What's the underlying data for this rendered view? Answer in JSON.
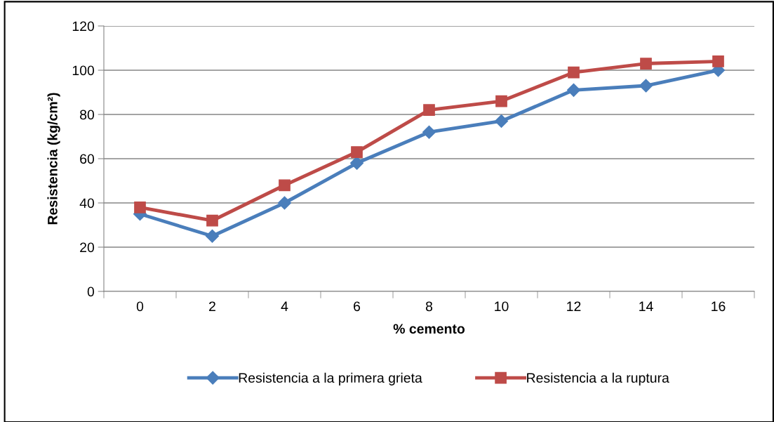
{
  "chart_data": {
    "type": "line",
    "xlabel": "% cemento",
    "ylabel": "Resistencia (kg/cm²)",
    "categories": [
      "0",
      "2",
      "4",
      "6",
      "8",
      "10",
      "12",
      "14",
      "16"
    ],
    "series": [
      {
        "name": "Resistencia a la primera grieta",
        "color": "#4a7ebb",
        "marker": "diamond",
        "values": [
          35,
          25,
          40,
          58,
          72,
          77,
          91,
          93,
          100
        ]
      },
      {
        "name": "Resistencia a la ruptura",
        "color": "#be4b48",
        "marker": "square",
        "values": [
          38,
          32,
          48,
          63,
          82,
          86,
          99,
          103,
          104
        ]
      }
    ],
    "ylim": [
      0,
      120
    ],
    "yticks": [
      0,
      20,
      40,
      60,
      80,
      100,
      120
    ],
    "grid": "y",
    "legend": "bottom",
    "line_style": "solid"
  }
}
